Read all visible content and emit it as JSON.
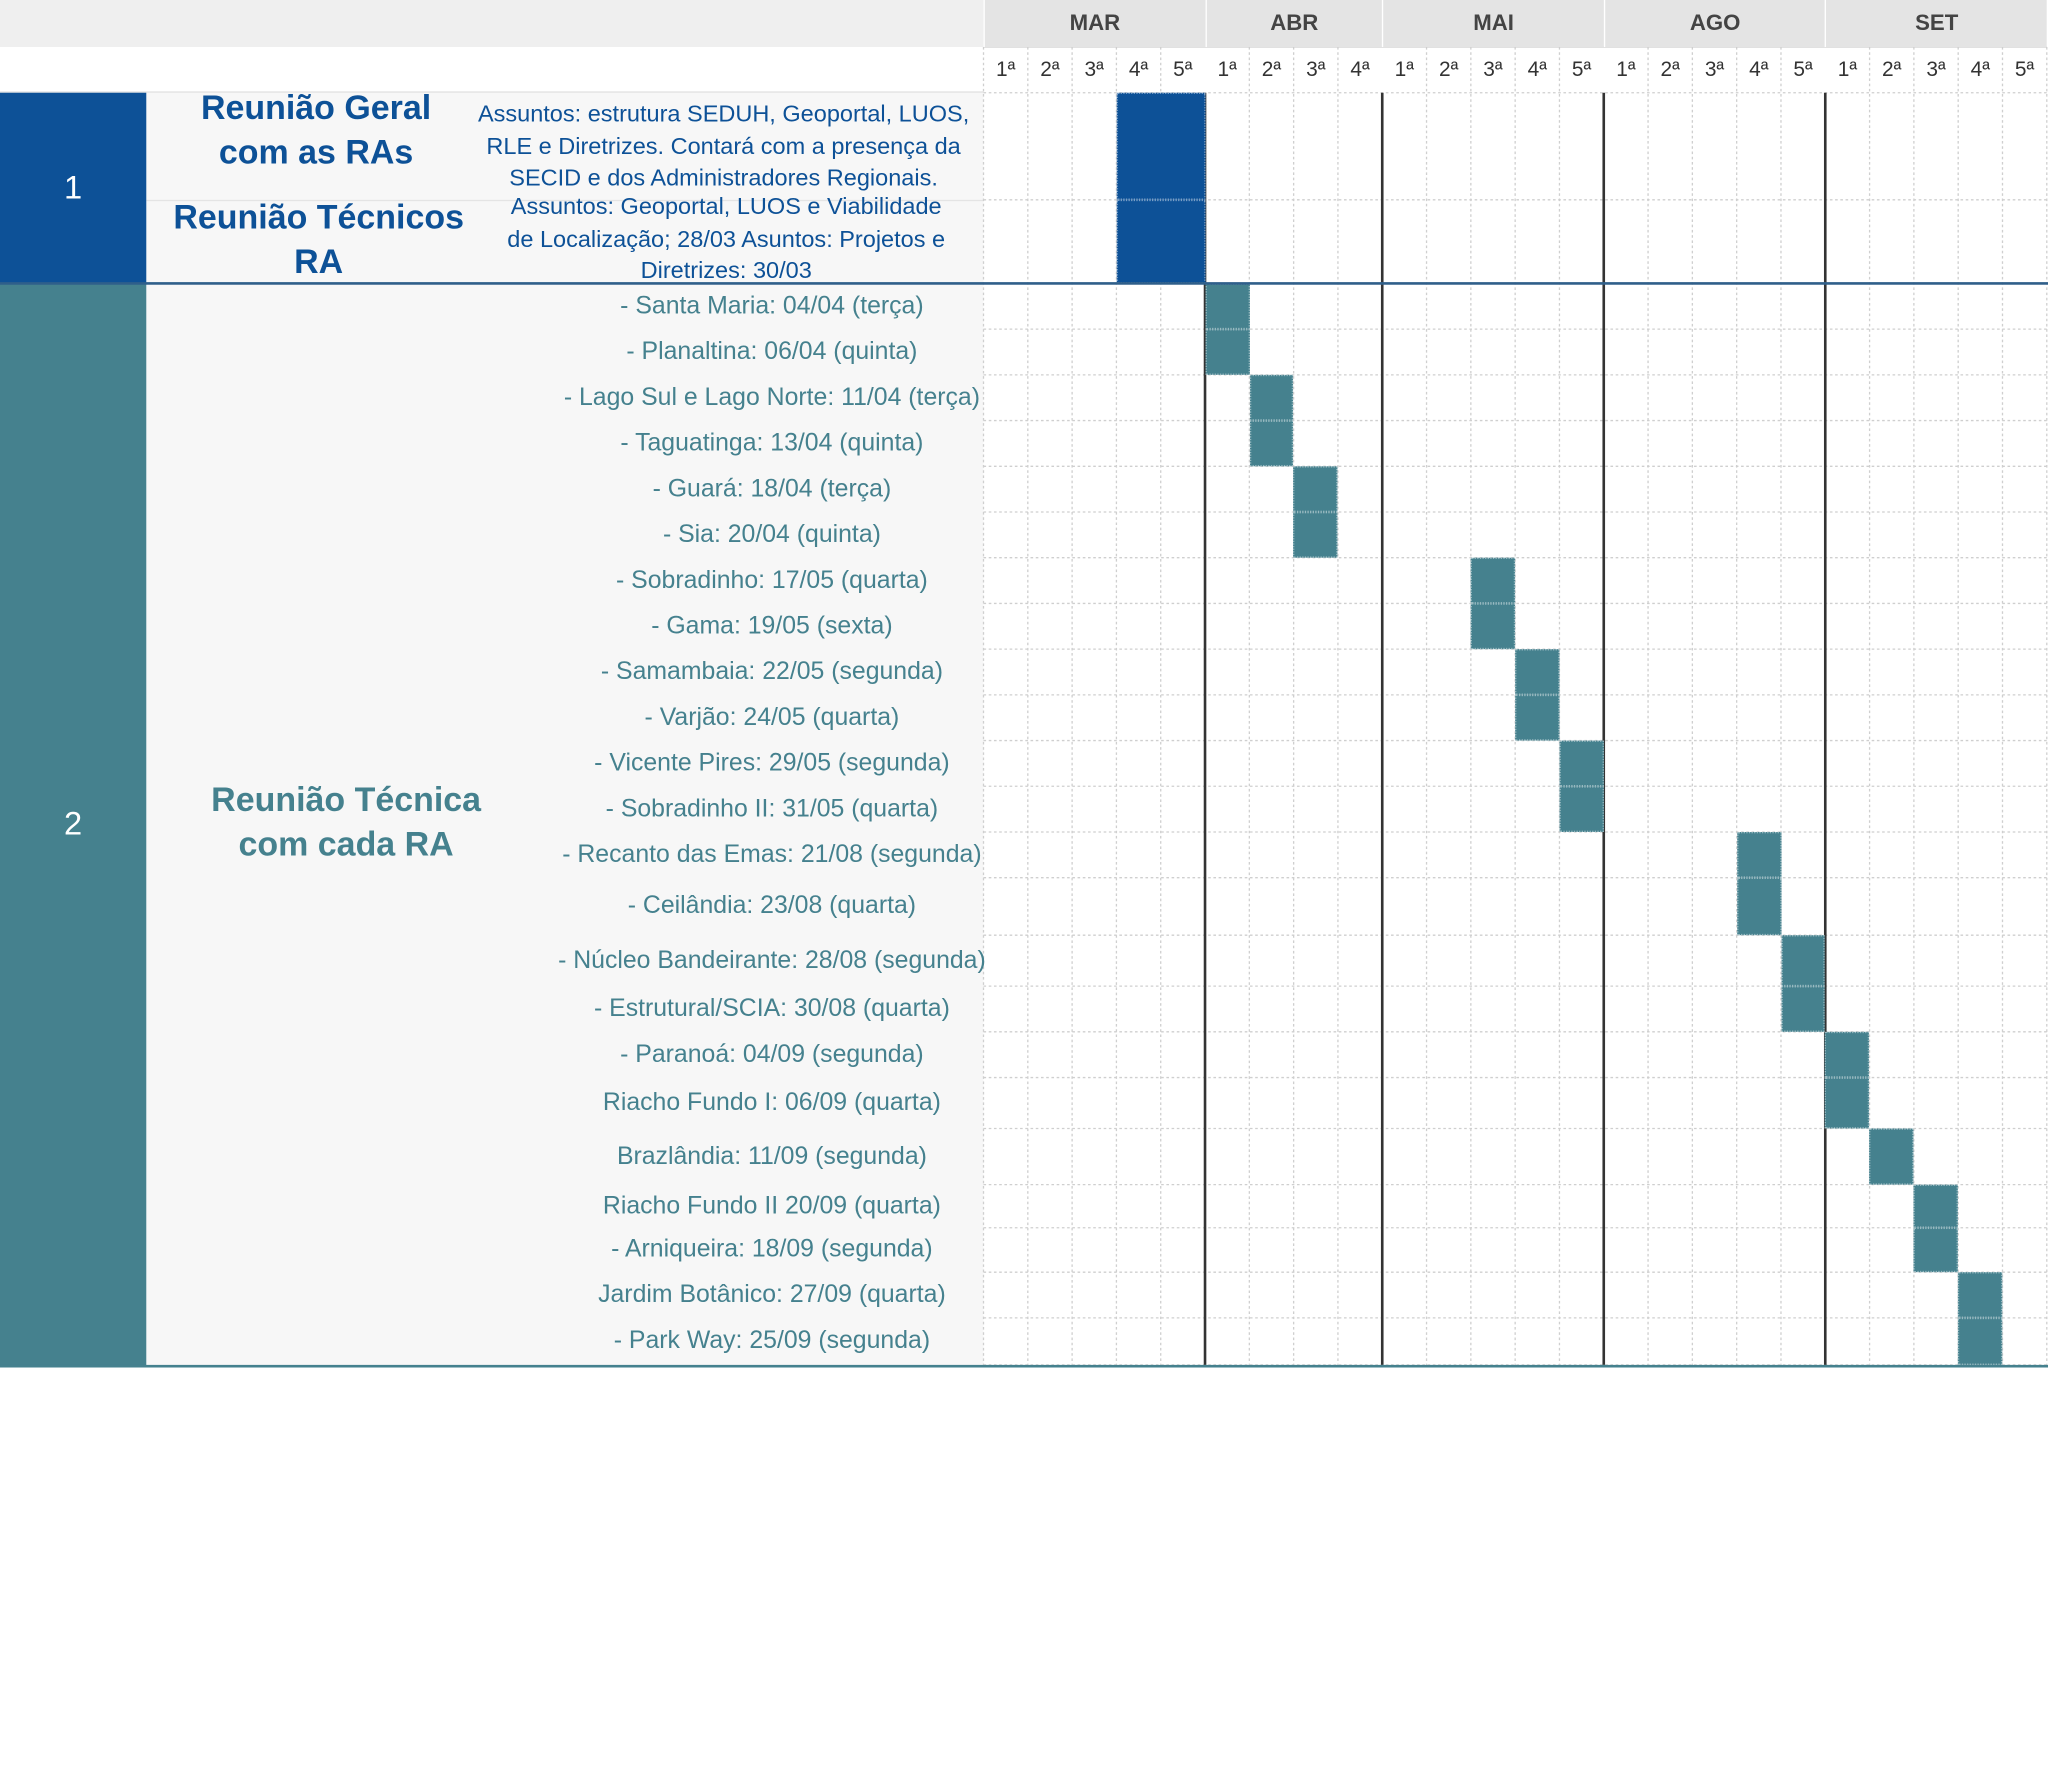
{
  "chart_data": {
    "type": "gantt",
    "months": [
      {
        "label": "MAR",
        "weeks": [
          "1ª",
          "2ª",
          "3ª",
          "4ª",
          "5ª"
        ]
      },
      {
        "label": "ABR",
        "weeks": [
          "1ª",
          "2ª",
          "3ª",
          "4ª"
        ]
      },
      {
        "label": "MAI",
        "weeks": [
          "1ª",
          "2ª",
          "3ª",
          "4ª",
          "5ª"
        ]
      },
      {
        "label": "AGO",
        "weeks": [
          "1ª",
          "2ª",
          "3ª",
          "4ª",
          "5ª"
        ]
      },
      {
        "label": "SET",
        "weeks": [
          "1ª",
          "2ª",
          "3ª",
          "4ª",
          "5ª"
        ]
      }
    ],
    "groups": [
      {
        "number": "1",
        "color": "#0d5197",
        "tasks": [
          {
            "title": "Reunião Geral com as RAs",
            "description": "Assuntos: estrutura SEDUH, Geoportal,  LUOS, RLE e Diretrizes. Contará com a presença da SECID e dos Administradores Regionais.",
            "start_week": 4,
            "end_week": 5
          },
          {
            "title": "Reunião Técnicos RA",
            "description": "Assuntos: Geoportal, LUOS e Viabilidade de Localização; 28/03 Asuntos: Projetos e Diretrizes: 30/03",
            "start_week": 4,
            "end_week": 5
          }
        ]
      },
      {
        "number": "2",
        "color": "#45818e",
        "title": "Reunião Técnica com cada RA",
        "tasks": [
          {
            "label": "- Santa Maria: 04/04 (terça)",
            "start_week": 6,
            "end_week": 6
          },
          {
            "label": "- Planaltina: 06/04 (quinta)",
            "start_week": 6,
            "end_week": 6
          },
          {
            "label": "- Lago Sul e Lago Norte: 11/04 (terça)",
            "start_week": 7,
            "end_week": 7
          },
          {
            "label": "- Taguatinga: 13/04 (quinta)",
            "start_week": 7,
            "end_week": 7
          },
          {
            "label": "- Guará: 18/04 (terça)",
            "start_week": 8,
            "end_week": 8
          },
          {
            "label": "- Sia: 20/04 (quinta)",
            "start_week": 8,
            "end_week": 8
          },
          {
            "label": "- Sobradinho: 17/05 (quarta)",
            "start_week": 12,
            "end_week": 12
          },
          {
            "label": "- Gama: 19/05 (sexta)",
            "start_week": 12,
            "end_week": 12
          },
          {
            "label": "- Samambaia: 22/05 (segunda)",
            "start_week": 13,
            "end_week": 13
          },
          {
            "label": "- Varjão: 24/05 (quarta)",
            "start_week": 13,
            "end_week": 13
          },
          {
            "label": "- Vicente Pires: 29/05 (segunda)",
            "start_week": 14,
            "end_week": 14
          },
          {
            "label": "- Sobradinho II:  31/05 (quarta)",
            "start_week": 14,
            "end_week": 14
          },
          {
            "label": "- Recanto das Emas: 21/08 (segunda)",
            "start_week": 18,
            "end_week": 18
          },
          {
            "label": "- Ceilândia: 23/08 (quarta)",
            "start_week": 18,
            "end_week": 18
          },
          {
            "label": "- Núcleo Bandeirante: 28/08 (segunda)",
            "start_week": 19,
            "end_week": 19
          },
          {
            "label": "- Estrutural/SCIA: 30/08 (quarta)",
            "start_week": 19,
            "end_week": 19
          },
          {
            "label": "- Paranoá: 04/09 (segunda)",
            "start_week": 20,
            "end_week": 20
          },
          {
            "label": "Riacho Fundo I: 06/09 (quarta)",
            "start_week": 20,
            "end_week": 20
          },
          {
            "label": "Brazlândia:  11/09 (segunda)",
            "start_week": 21,
            "end_week": 21
          },
          {
            "label": "Riacho Fundo II 20/09 (quarta)",
            "start_week": 22,
            "end_week": 22
          },
          {
            "label": "- Arniqueira: 18/09 (segunda)",
            "start_week": 22,
            "end_week": 22
          },
          {
            "label": "Jardim Botânico: 27/09 (quarta)",
            "start_week": 23,
            "end_week": 23
          },
          {
            "label": "- Park Way: 25/09 (segunda)",
            "start_week": 23,
            "end_week": 23
          }
        ]
      }
    ]
  }
}
